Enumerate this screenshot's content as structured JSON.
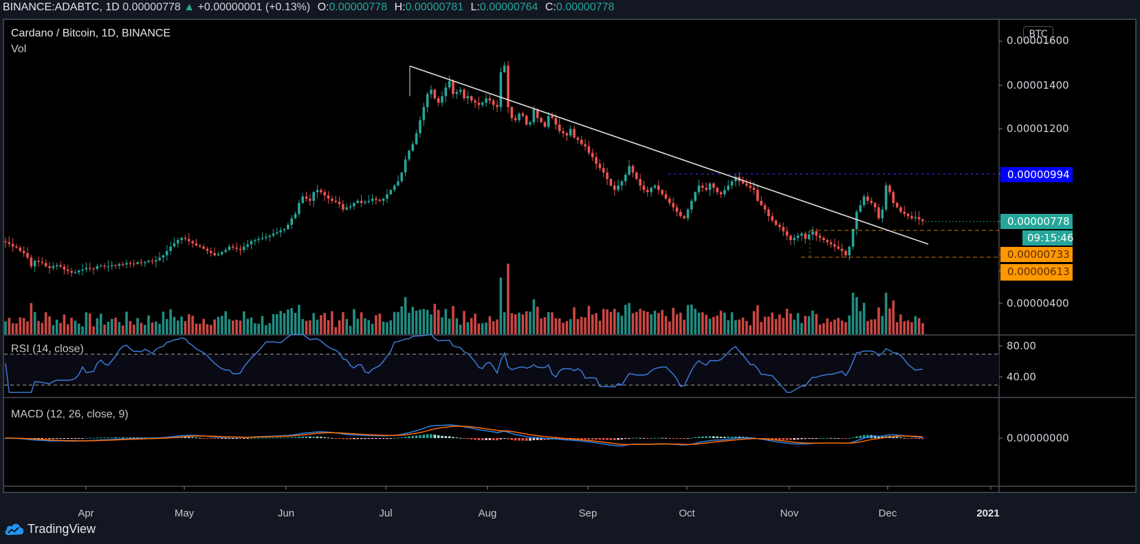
{
  "header": {
    "symbol": "BINANCE:ADABTC, 1D",
    "last": "0.00000778",
    "change": "+0.00000001 (+0.13%)",
    "open_label": "O:",
    "open": "0.00000778",
    "high_label": "H:",
    "high": "0.00000781",
    "low_label": "L:",
    "low": "0.00000764",
    "close_label": "C:",
    "close": "0.00000778"
  },
  "chart": {
    "title": "Cardano / Bitcoin, 1D, BINANCE",
    "volume_label": "Vol",
    "currency_badge": "BTC",
    "rsi_label": "RSI (14, close)",
    "macd_label": "MACD (12, 26, close, 9)",
    "countdown": "09:15:46",
    "brand": "TradingView",
    "colors": {
      "up": "#26a69a",
      "down": "#ef5350",
      "rsi": "#3d7bd9",
      "macd": "#2d86e6",
      "signal": "#ff6d00",
      "hline_blue": "#0000ff",
      "hline_orange": "#ff9800",
      "trendline": "#e0e0e0"
    }
  },
  "chart_data": {
    "type": "candlestick",
    "title": "Cardano / Bitcoin, 1D, BINANCE",
    "units": "BTC (values x 1e-8 shown as full decimals on axis)",
    "price_axis_ticks": [
      "0.00001600",
      "0.00001400",
      "0.00001200",
      "0.00000400"
    ],
    "price_tags": [
      {
        "value": "0.00000994",
        "color": "#0000ff",
        "text_color": "#ffffff",
        "kind": "horizontal-resistance"
      },
      {
        "value": "0.00000778",
        "color": "#26a69a",
        "text_color": "#ffffff",
        "kind": "last-price"
      },
      {
        "value": "0.00000733",
        "color": "#ff9800",
        "text_color": "#5a2c00",
        "kind": "support"
      },
      {
        "value": "0.00000613",
        "color": "#ff9800",
        "text_color": "#5a2c00",
        "kind": "support"
      }
    ],
    "time_axis_ticks": [
      "Apr",
      "May",
      "Jun",
      "Jul",
      "Aug",
      "Sep",
      "Oct",
      "Nov",
      "Dec",
      "2021"
    ],
    "rsi_axis_ticks": [
      "80.00",
      "40.00"
    ],
    "rsi_levels": [
      70,
      30
    ],
    "macd_axis_ticks": [
      "0.00000000"
    ],
    "trendline": {
      "from": {
        "date": "Jul 8",
        "price": 1.49e-05
      },
      "to": {
        "date": "Dec 12",
        "price": 6.98e-06
      }
    },
    "key_points": [
      {
        "label": "Mar start",
        "price": 6.8e-06
      },
      {
        "label": "Mar low",
        "price": 5.3e-06
      },
      {
        "label": "May high",
        "price": 7e-06
      },
      {
        "label": "Jun high",
        "price": 8.8e-06
      },
      {
        "label": "Jul high",
        "price": 1.49e-05
      },
      {
        "label": "Jul 26 wick high",
        "price": 1.59e-05
      },
      {
        "label": "Aug",
        "price": 1.25e-05
      },
      {
        "label": "Sep low",
        "price": 7.6e-06
      },
      {
        "label": "Oct high",
        "price": 9.94e-06
      },
      {
        "label": "Nov low",
        "price": 6.13e-06
      },
      {
        "label": "Nov 24 high",
        "price": 9.94e-06
      },
      {
        "label": "Dec last",
        "price": 7.78e-06
      }
    ],
    "closes": [
      6.8,
      6.72,
      6.6,
      6.55,
      6.4,
      6.3,
      6.1,
      5.7,
      5.95,
      5.9,
      5.85,
      5.7,
      5.62,
      5.7,
      5.75,
      5.68,
      5.55,
      5.48,
      5.4,
      5.42,
      5.5,
      5.55,
      5.62,
      5.6,
      5.58,
      5.7,
      5.72,
      5.68,
      5.7,
      5.75,
      5.72,
      5.8,
      5.78,
      5.85,
      5.82,
      5.8,
      5.88,
      5.85,
      5.9,
      5.95,
      5.92,
      5.98,
      6.1,
      6.2,
      6.4,
      6.6,
      6.75,
      6.9,
      7.0,
      6.95,
      6.85,
      6.75,
      6.65,
      6.6,
      6.5,
      6.4,
      6.3,
      6.2,
      6.25,
      6.35,
      6.45,
      6.6,
      6.55,
      6.5,
      6.45,
      6.6,
      6.7,
      6.85,
      6.9,
      6.95,
      7.0,
      7.05,
      7.1,
      7.2,
      7.25,
      7.35,
      7.4,
      7.6,
      7.9,
      8.1,
      8.6,
      8.9,
      8.8,
      8.7,
      9.1,
      9.2,
      9.1,
      8.95,
      8.8,
      8.7,
      8.65,
      8.55,
      8.3,
      8.4,
      8.45,
      8.6,
      8.7,
      8.6,
      8.65,
      8.7,
      8.8,
      8.75,
      8.7,
      8.8,
      9.0,
      9.2,
      9.4,
      9.6,
      10.0,
      10.6,
      11.0,
      11.3,
      11.8,
      12.4,
      13.0,
      13.6,
      13.8,
      13.4,
      13.2,
      13.5,
      13.9,
      14.2,
      13.6,
      13.7,
      13.8,
      13.4,
      13.5,
      13.3,
      13.2,
      13.1,
      13.2,
      13.4,
      13.3,
      13.1,
      13.0,
      14.6,
      14.9,
      13.0,
      12.5,
      12.4,
      12.7,
      12.6,
      12.2,
      12.3,
      12.9,
      12.5,
      12.3,
      12.1,
      12.6,
      12.5,
      12.2,
      11.9,
      11.8,
      11.7,
      12.0,
      11.6,
      11.5,
      11.3,
      11.2,
      10.9,
      10.7,
      10.4,
      10.2,
      10.0,
      9.7,
      9.4,
      9.2,
      9.4,
      9.6,
      9.9,
      10.3,
      10.0,
      9.7,
      9.4,
      9.2,
      9.1,
      9.3,
      9.4,
      9.2,
      9.0,
      8.8,
      8.6,
      8.4,
      8.2,
      8.0,
      7.9,
      8.3,
      8.7,
      9.1,
      9.4,
      9.3,
      9.2,
      9.5,
      9.3,
      9.1,
      9.0,
      9.2,
      9.4,
      9.6,
      9.8,
      9.6,
      9.5,
      9.4,
      9.3,
      9.2,
      8.7,
      8.5,
      8.3,
      8.0,
      7.8,
      7.6,
      7.5,
      7.3,
      7.1,
      6.9,
      7.0,
      7.1,
      7.2,
      6.95,
      7.15,
      7.3,
      7.1,
      7.0,
      6.9,
      6.8,
      6.7,
      6.6,
      6.5,
      6.4,
      6.2,
      6.6,
      7.4,
      8.2,
      8.5,
      8.9,
      8.7,
      8.6,
      8.4,
      7.9,
      8.3,
      9.4,
      9.1,
      8.6,
      8.4,
      8.2,
      8.1,
      8.0,
      7.9,
      7.95,
      7.85,
      7.78
    ]
  }
}
